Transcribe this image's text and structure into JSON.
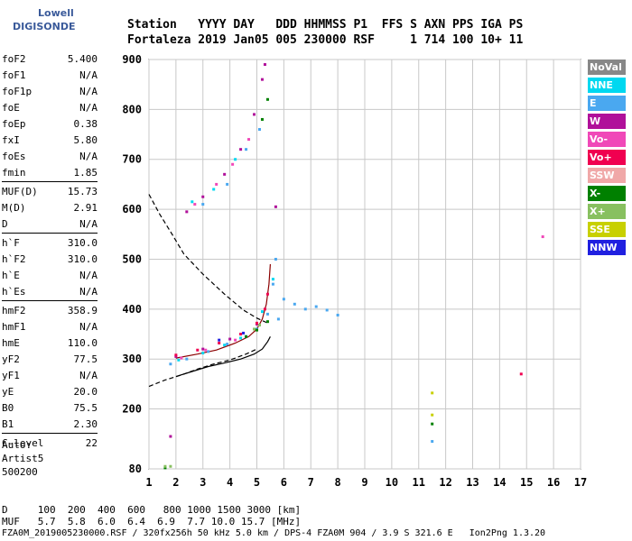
{
  "logo": {
    "line1": "Lowell",
    "line2": "DIGISONDE"
  },
  "header": {
    "row1": "Station   YYYY DAY   DDD HHMMSS P1  FFS S AXN PPS IGA PS",
    "row2": "Fortaleza 2019 Jan05 005 230000 RSF     1 714 100 10+ 11"
  },
  "params": [
    [
      {
        "k": "foF2",
        "v": "5.400"
      },
      {
        "k": "foF1",
        "v": "N/A"
      },
      {
        "k": "foF1p",
        "v": "N/A"
      },
      {
        "k": "foE",
        "v": "N/A"
      },
      {
        "k": "foEp",
        "v": "0.38"
      },
      {
        "k": "fxI",
        "v": "5.80"
      },
      {
        "k": "foEs",
        "v": "N/A"
      },
      {
        "k": "fmin",
        "v": "1.85"
      }
    ],
    [
      {
        "k": "MUF(D)",
        "v": "15.73"
      },
      {
        "k": "M(D)",
        "v": "2.91"
      },
      {
        "k": "D",
        "v": "N/A"
      }
    ],
    [
      {
        "k": "h`F",
        "v": "310.0"
      },
      {
        "k": "h`F2",
        "v": "310.0"
      },
      {
        "k": "h`E",
        "v": "N/A"
      },
      {
        "k": "h`Es",
        "v": "N/A"
      }
    ],
    [
      {
        "k": "hmF2",
        "v": "358.9"
      },
      {
        "k": "hmF1",
        "v": "N/A"
      },
      {
        "k": "hmE",
        "v": "110.0"
      },
      {
        "k": "yF2",
        "v": "77.5"
      },
      {
        "k": "yF1",
        "v": "N/A"
      },
      {
        "k": "yE",
        "v": "20.0"
      },
      {
        "k": "B0",
        "v": "75.5"
      },
      {
        "k": "B1",
        "v": "2.30"
      }
    ],
    [
      {
        "k": "C-level",
        "v": "22"
      }
    ]
  ],
  "auto": {
    "line1": "Auto:",
    "line2": "Artist5",
    "line3": "500200"
  },
  "legend": [
    {
      "label": "NoVal",
      "color": "#888888"
    },
    {
      "label": "NNE",
      "color": "#00d8f0"
    },
    {
      "label": "E",
      "color": "#4aa8f0"
    },
    {
      "label": "W",
      "color": "#b0109a"
    },
    {
      "label": "Vo-",
      "color": "#f048b8"
    },
    {
      "label": "Vo+",
      "color": "#f00050"
    },
    {
      "label": "SSW",
      "color": "#f0a8a8"
    },
    {
      "label": "X-",
      "color": "#008000"
    },
    {
      "label": "X+",
      "color": "#88c060"
    },
    {
      "label": "SSE",
      "color": "#c8d000"
    },
    {
      "label": "NNW",
      "color": "#2020e0"
    }
  ],
  "footer": {
    "d_row": "D     100  200  400  600   800 1000 1500 3000 [km]",
    "muf_row": "MUF   5.7  5.8  6.0  6.4  6.9  7.7 10.0 15.7 [MHz]",
    "file_row": "FZA0M_2019005230000.RSF / 320fx256h 50 kHz 5.0 km / DPS-4 FZA0M 904 / 3.9 S 321.6 E   Ion2Png 1.3.20"
  },
  "chart_data": {
    "type": "scatter",
    "title": "",
    "xlabel": "",
    "ylabel": "",
    "xlim": [
      1,
      17
    ],
    "ylim": [
      80,
      900
    ],
    "x_ticks": [
      1,
      2,
      3,
      4,
      5,
      6,
      7,
      8,
      9,
      10,
      11,
      12,
      13,
      14,
      15,
      16,
      17
    ],
    "y_ticks": [
      80,
      200,
      300,
      400,
      500,
      600,
      700,
      800,
      900
    ],
    "grid": true,
    "legend_position": "right",
    "series": [
      {
        "name": "NNE",
        "color": "#00d8f0",
        "points": [
          [
            2.1,
            298
          ],
          [
            3.0,
            312
          ],
          [
            3.8,
            328
          ],
          [
            4.4,
            342
          ],
          [
            5.2,
            395
          ],
          [
            5.6,
            460
          ],
          [
            3.4,
            640
          ],
          [
            4.2,
            700
          ],
          [
            2.6,
            615
          ]
        ]
      },
      {
        "name": "E",
        "color": "#4aa8f0",
        "points": [
          [
            1.8,
            290
          ],
          [
            2.4,
            300
          ],
          [
            3.2,
            315
          ],
          [
            3.9,
            330
          ],
          [
            4.6,
            345
          ],
          [
            5.0,
            360
          ],
          [
            5.4,
            390
          ],
          [
            5.6,
            450
          ],
          [
            5.7,
            500
          ],
          [
            5.8,
            380
          ],
          [
            6.0,
            420
          ],
          [
            6.4,
            410
          ],
          [
            6.8,
            400
          ],
          [
            7.2,
            405
          ],
          [
            7.6,
            398
          ],
          [
            8.0,
            388
          ],
          [
            3.0,
            610
          ],
          [
            3.9,
            650
          ],
          [
            4.6,
            720
          ],
          [
            5.1,
            760
          ],
          [
            11.5,
            135
          ]
        ]
      },
      {
        "name": "W",
        "color": "#b0109a",
        "points": [
          [
            2.0,
            305
          ],
          [
            3.0,
            320
          ],
          [
            4.0,
            340
          ],
          [
            5.0,
            370
          ],
          [
            2.4,
            595
          ],
          [
            3.0,
            625
          ],
          [
            3.8,
            670
          ],
          [
            4.4,
            720
          ],
          [
            4.9,
            790
          ],
          [
            5.2,
            860
          ],
          [
            5.3,
            890
          ],
          [
            1.8,
            145
          ],
          [
            5.7,
            605
          ]
        ]
      },
      {
        "name": "Vo-",
        "color": "#f048b8",
        "points": [
          [
            2.2,
            302
          ],
          [
            3.1,
            318
          ],
          [
            4.2,
            338
          ],
          [
            2.7,
            610
          ],
          [
            3.5,
            650
          ],
          [
            4.1,
            690
          ],
          [
            4.7,
            740
          ],
          [
            15.6,
            545
          ]
        ]
      },
      {
        "name": "Vo+",
        "color": "#f00050",
        "points": [
          [
            2.0,
            308
          ],
          [
            2.8,
            318
          ],
          [
            3.6,
            332
          ],
          [
            4.4,
            350
          ],
          [
            5.0,
            372
          ],
          [
            5.3,
            400
          ],
          [
            5.4,
            430
          ],
          [
            14.8,
            270
          ]
        ]
      },
      {
        "name": "X-",
        "color": "#008000",
        "points": [
          [
            4.6,
            345
          ],
          [
            5.0,
            358
          ],
          [
            5.4,
            375
          ],
          [
            5.2,
            780
          ],
          [
            5.4,
            820
          ],
          [
            1.6,
            82
          ],
          [
            11.5,
            170
          ]
        ]
      },
      {
        "name": "X+",
        "color": "#88c060",
        "points": [
          [
            4.9,
            360
          ],
          [
            5.1,
            368
          ],
          [
            1.6,
            85
          ],
          [
            1.8,
            85
          ]
        ]
      },
      {
        "name": "SSE",
        "color": "#c8d000",
        "points": [
          [
            11.5,
            232
          ],
          [
            11.5,
            188
          ]
        ]
      },
      {
        "name": "NNW",
        "color": "#2020e0",
        "points": [
          [
            3.6,
            338
          ],
          [
            4.5,
            352
          ]
        ]
      }
    ],
    "curves": [
      {
        "style": "solid",
        "color": "#000000",
        "points": [
          [
            2.0,
            265
          ],
          [
            2.6,
            275
          ],
          [
            3.2,
            285
          ],
          [
            3.8,
            292
          ],
          [
            4.4,
            300
          ],
          [
            4.9,
            310
          ],
          [
            5.2,
            320
          ],
          [
            5.4,
            335
          ],
          [
            5.5,
            345
          ]
        ]
      },
      {
        "style": "solid",
        "color": "#8b0000",
        "points": [
          [
            2.0,
            302
          ],
          [
            2.8,
            310
          ],
          [
            3.5,
            318
          ],
          [
            4.2,
            332
          ],
          [
            4.7,
            345
          ],
          [
            5.0,
            360
          ],
          [
            5.2,
            380
          ],
          [
            5.35,
            410
          ],
          [
            5.45,
            450
          ],
          [
            5.5,
            490
          ]
        ]
      },
      {
        "style": "dashed",
        "color": "#000000",
        "points": [
          [
            1.0,
            630
          ],
          [
            1.4,
            590
          ],
          [
            1.8,
            555
          ],
          [
            2.3,
            510
          ],
          [
            3.0,
            470
          ],
          [
            3.8,
            430
          ],
          [
            4.5,
            398
          ],
          [
            5.0,
            382
          ],
          [
            5.4,
            372
          ]
        ]
      },
      {
        "style": "dashed",
        "color": "#000000",
        "points": [
          [
            1.0,
            245
          ],
          [
            1.6,
            258
          ],
          [
            2.2,
            268
          ],
          [
            2.8,
            280
          ],
          [
            3.4,
            290
          ],
          [
            4.0,
            298
          ],
          [
            4.6,
            310
          ],
          [
            5.0,
            320
          ]
        ]
      }
    ]
  }
}
